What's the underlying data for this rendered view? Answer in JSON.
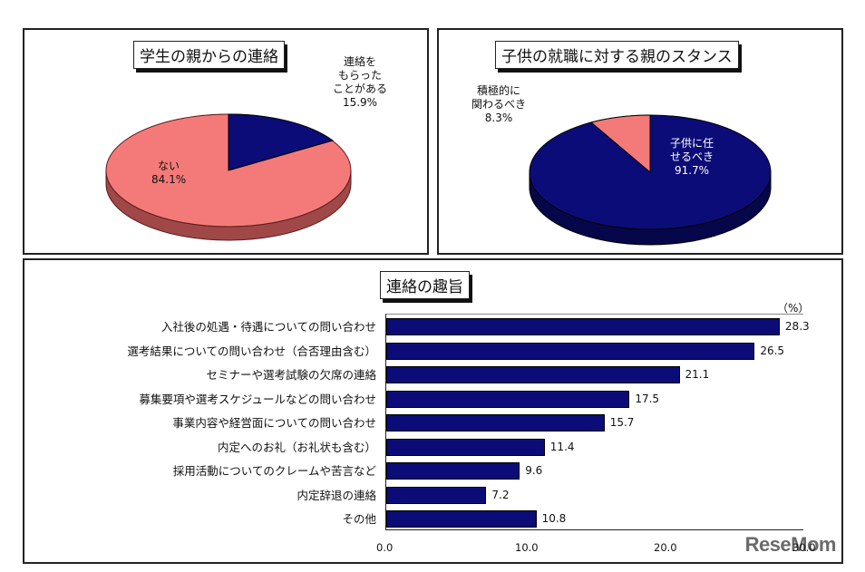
{
  "chart_data": [
    {
      "type": "pie",
      "title": "学生の親からの連絡",
      "slices": [
        {
          "label": "連絡をもらったことがある",
          "value": 15.9,
          "color": "#0c0c78"
        },
        {
          "label": "ない",
          "value": 84.1,
          "color": "#f47a7a"
        }
      ],
      "unit": "%"
    },
    {
      "type": "pie",
      "title": "子供の就職に対する親のスタンス",
      "slices": [
        {
          "label": "子供に任せるべき",
          "value": 91.7,
          "color": "#0c0c78"
        },
        {
          "label": "積極的に関わるべき",
          "value": 8.3,
          "color": "#f47a7a"
        }
      ],
      "unit": "%"
    },
    {
      "type": "bar",
      "orientation": "horizontal",
      "title": "連絡の趣旨",
      "unit_label": "（%）",
      "categories": [
        "入社後の処遇・待遇についての問い合わせ",
        "選考結果についての問い合わせ（合否理由含む）",
        "セミナーや選考試験の欠席の連絡",
        "募集要項や選考スケジュールなどの問い合わせ",
        "事業内容や経営面についての問い合わせ",
        "内定へのお礼（お礼状も含む）",
        "採用活動についてのクレームや苦言など",
        "内定辞退の連絡",
        "その他"
      ],
      "values": [
        28.3,
        26.5,
        21.1,
        17.5,
        15.7,
        11.4,
        9.6,
        7.2,
        10.8
      ],
      "xlim": [
        0,
        30
      ],
      "xticks": [
        "0.0",
        "10.0",
        "20.0",
        "30.0"
      ],
      "bar_color": "#0c0c78"
    }
  ],
  "pie1": {
    "title": "学生の親からの連絡",
    "label_a": [
      "連絡を",
      "もらった",
      "ことがある",
      "15.9%"
    ],
    "label_b": [
      "ない",
      "84.1%"
    ]
  },
  "pie2": {
    "title": "子供の就職に対する親のスタンス",
    "label_a": [
      "積極的に",
      "関わるべき",
      "8.3%"
    ],
    "label_b": [
      "子供に任",
      "せるべき",
      "91.7%"
    ]
  },
  "bars": {
    "title": "連絡の趣旨",
    "unit": "（%）",
    "cats": [
      "入社後の処遇・待遇についての問い合わせ",
      "選考結果についての問い合わせ（合否理由含む）",
      "セミナーや選考試験の欠席の連絡",
      "募集要項や選考スケジュールなどの問い合わせ",
      "事業内容や経営面についての問い合わせ",
      "内定へのお礼（お礼状も含む）",
      "採用活動についてのクレームや苦言など",
      "内定辞退の連絡",
      "その他"
    ],
    "vals": [
      "28.3",
      "26.5",
      "21.1",
      "17.5",
      "15.7",
      "11.4",
      "9.6",
      "7.2",
      "10.8"
    ],
    "ticks": [
      "0.0",
      "10.0",
      "20.0",
      "30.0"
    ]
  },
  "watermark": "ReseMom"
}
